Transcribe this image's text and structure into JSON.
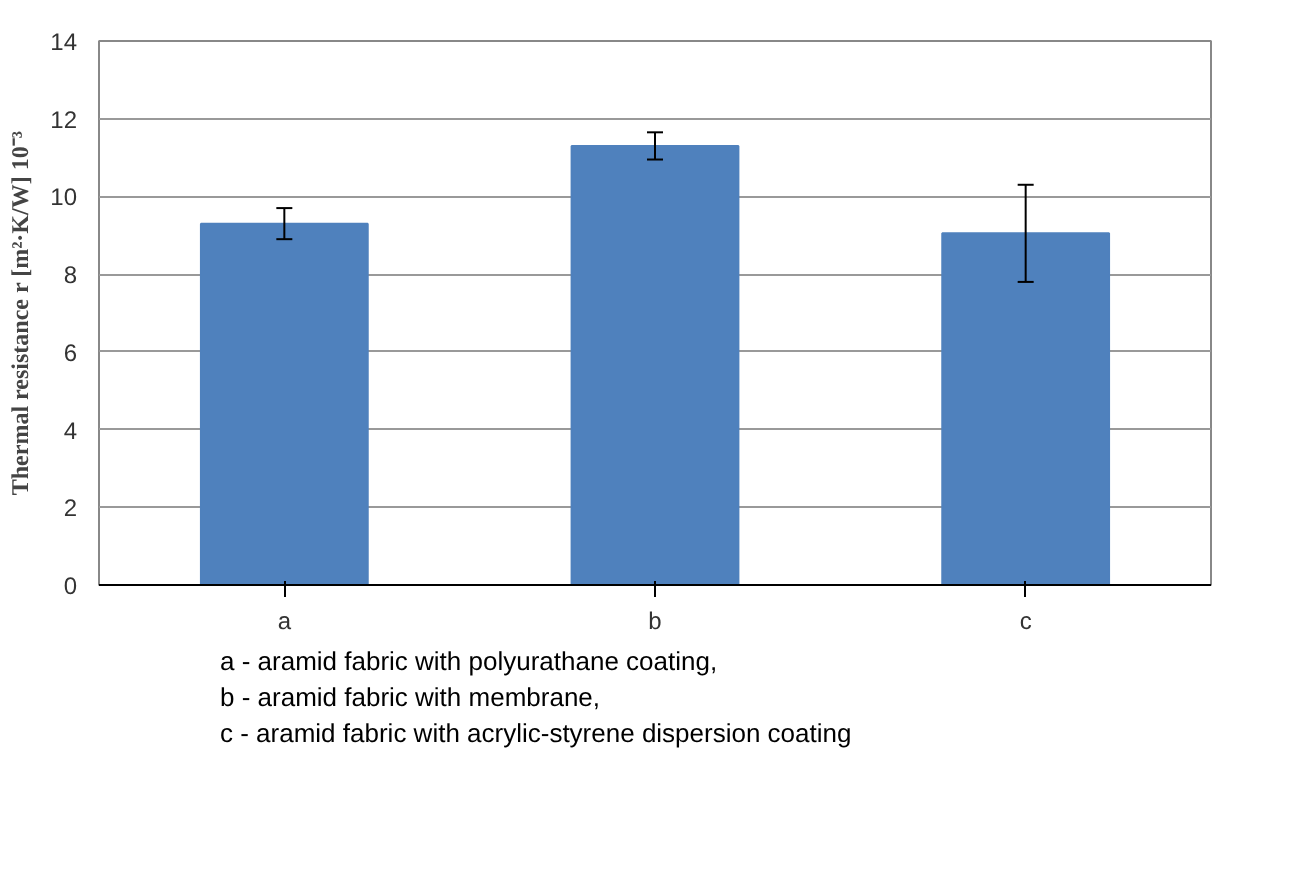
{
  "chart_data": {
    "type": "bar",
    "ylabel": "Thermal resistance r [m²·K/W] 10⁻³",
    "categories": [
      "a",
      "b",
      "c"
    ],
    "values": [
      9.3,
      11.3,
      9.05
    ],
    "color": "#4f81bd",
    "errors": [
      0.4,
      0.35,
      1.25
    ],
    "ylim": [
      0,
      14
    ],
    "yticks": [
      0,
      2,
      4,
      6,
      8,
      10,
      12,
      14
    ],
    "grid": "y",
    "annotations": [
      "a - aramid fabric with polyurathane coating,",
      "b - aramid fabric with membrane,",
      "c - aramid fabric with acrylic-styrene dispersion coating"
    ]
  }
}
